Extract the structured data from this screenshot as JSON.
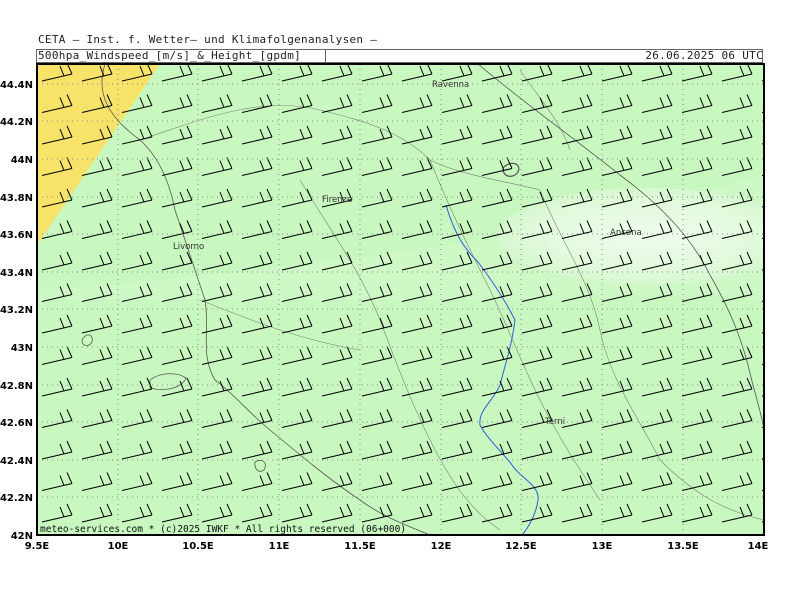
{
  "header": {
    "title_line1": "CETA — Inst. f. Wetter— und Klimafolgenanalysen —",
    "title_line2": "500hpa_Windspeed_[m/s]_&_Height_[gpdm]",
    "datetime": "26.06.2025 06 UTC"
  },
  "map": {
    "lat_labels": [
      "44.4N",
      "44.2N",
      "44N",
      "43.8N",
      "43.6N",
      "43.4N",
      "43.2N",
      "43N",
      "42.8N",
      "42.6N",
      "42.4N",
      "42.2N",
      "42N"
    ],
    "lon_labels": [
      "9.5E",
      "10E",
      "10.5E",
      "11E",
      "11.5E",
      "12E",
      "12.5E",
      "13E",
      "13.5E",
      "14E"
    ],
    "cities": [
      "Ravenna",
      "Firenze",
      "Livorno",
      "Ancona",
      "Terni"
    ],
    "footer": "meteo-services.com * (c)2025 IWKF * All rights reserved (06+000)",
    "colors": {
      "base_green": "#c8f7c0",
      "light_band": "#e8fbe3",
      "yellow_corner": "#f7e36a",
      "river": "#2a5fd6",
      "border": "#444444"
    }
  }
}
